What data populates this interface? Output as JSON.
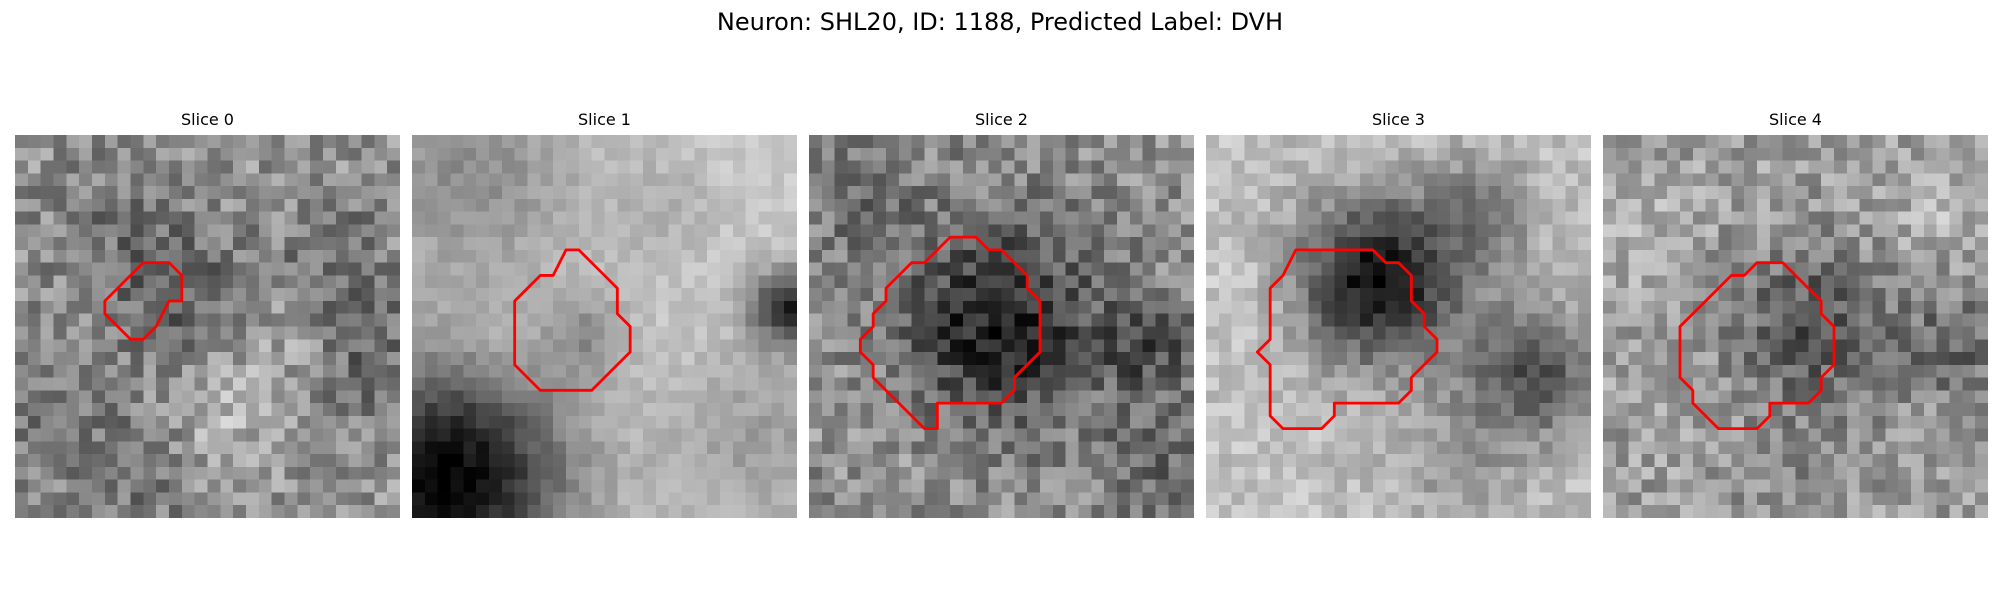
{
  "figure": {
    "title": "Neuron: SHL20, ID: 1188, Predicted Label: DVH",
    "outline_color": "#ff0000",
    "colormap": "grayscale",
    "panels": [
      {
        "title": "Slice 0",
        "seed": 11,
        "base": 0.58,
        "noise": 0.34,
        "blobs": [
          [
            0.28,
            0.25,
            0.14,
            -0.12
          ],
          [
            0.45,
            0.42,
            0.12,
            -0.18
          ],
          [
            0.82,
            0.3,
            0.1,
            -0.15
          ],
          [
            0.92,
            0.58,
            0.12,
            -0.18
          ],
          [
            0.1,
            0.7,
            0.14,
            -0.12
          ],
          [
            0.3,
            0.9,
            0.12,
            -0.12
          ],
          [
            0.55,
            0.75,
            0.1,
            0.12
          ],
          [
            0.7,
            0.55,
            0.1,
            0.08
          ]
        ],
        "outline": [
          [
            11,
            10
          ],
          [
            12,
            10
          ],
          [
            13,
            11
          ],
          [
            13,
            13
          ],
          [
            12,
            13
          ],
          [
            11,
            15
          ],
          [
            10,
            16
          ],
          [
            9,
            16
          ],
          [
            8,
            15
          ],
          [
            7,
            14
          ],
          [
            7,
            13
          ],
          [
            8,
            12
          ],
          [
            9,
            11
          ],
          [
            9,
            11
          ],
          [
            10,
            10
          ]
        ]
      },
      {
        "title": "Slice 1",
        "seed": 23,
        "base": 0.8,
        "noise": 0.12,
        "blobs": [
          [
            0.1,
            0.9,
            0.22,
            -0.78
          ],
          [
            0.15,
            0.1,
            0.2,
            -0.25
          ],
          [
            0.45,
            0.52,
            0.08,
            -0.2
          ],
          [
            0.98,
            0.45,
            0.07,
            -0.65
          ],
          [
            0.9,
            0.8,
            0.18,
            -0.18
          ],
          [
            0.65,
            0.18,
            0.12,
            -0.1
          ],
          [
            0.25,
            0.55,
            0.07,
            0.08
          ]
        ],
        "outline": [
          [
            12,
            9
          ],
          [
            13,
            9
          ],
          [
            15,
            11
          ],
          [
            16,
            12
          ],
          [
            16,
            14
          ],
          [
            17,
            15
          ],
          [
            17,
            17
          ],
          [
            16,
            18
          ],
          [
            14,
            20
          ],
          [
            10,
            20
          ],
          [
            9,
            19
          ],
          [
            8,
            18
          ],
          [
            8,
            13
          ],
          [
            9,
            12
          ],
          [
            10,
            11
          ],
          [
            11,
            11
          ]
        ]
      },
      {
        "title": "Slice 2",
        "seed": 37,
        "base": 0.55,
        "noise": 0.34,
        "blobs": [
          [
            0.5,
            0.5,
            0.17,
            -0.45
          ],
          [
            0.88,
            0.55,
            0.08,
            -0.25
          ],
          [
            0.92,
            0.85,
            0.12,
            -0.15
          ],
          [
            0.15,
            0.2,
            0.12,
            -0.1
          ],
          [
            0.2,
            0.8,
            0.12,
            0.05
          ]
        ],
        "outline": [
          [
            11,
            8
          ],
          [
            13,
            8
          ],
          [
            14,
            9
          ],
          [
            15,
            9
          ],
          [
            17,
            11
          ],
          [
            17,
            12
          ],
          [
            18,
            13
          ],
          [
            18,
            17
          ],
          [
            17,
            18
          ],
          [
            16,
            19
          ],
          [
            16,
            20
          ],
          [
            15,
            21
          ],
          [
            10,
            21
          ],
          [
            10,
            23
          ],
          [
            9,
            23
          ],
          [
            8,
            22
          ],
          [
            6,
            20
          ],
          [
            5,
            19
          ],
          [
            5,
            18
          ],
          [
            4,
            17
          ],
          [
            4,
            16
          ],
          [
            5,
            15
          ],
          [
            5,
            14
          ],
          [
            6,
            13
          ],
          [
            6,
            12
          ],
          [
            7,
            11
          ],
          [
            8,
            10
          ],
          [
            9,
            10
          ],
          [
            10,
            9
          ]
        ]
      },
      {
        "title": "Slice 3",
        "seed": 41,
        "base": 0.75,
        "noise": 0.2,
        "blobs": [
          [
            0.45,
            0.38,
            0.15,
            -0.7
          ],
          [
            0.85,
            0.62,
            0.12,
            -0.45
          ],
          [
            0.72,
            0.2,
            0.1,
            -0.25
          ],
          [
            0.1,
            0.45,
            0.12,
            0.05
          ],
          [
            0.65,
            0.85,
            0.12,
            -0.15
          ]
        ],
        "outline": [
          [
            7,
            9
          ],
          [
            13,
            9
          ],
          [
            14,
            10
          ],
          [
            15,
            10
          ],
          [
            16,
            11
          ],
          [
            16,
            13
          ],
          [
            17,
            14
          ],
          [
            17,
            15
          ],
          [
            18,
            16
          ],
          [
            18,
            17
          ],
          [
            17,
            18
          ],
          [
            16,
            19
          ],
          [
            16,
            20
          ],
          [
            15,
            21
          ],
          [
            10,
            21
          ],
          [
            10,
            22
          ],
          [
            9,
            23
          ],
          [
            6,
            23
          ],
          [
            5,
            22
          ],
          [
            5,
            21
          ],
          [
            5,
            18
          ],
          [
            4,
            17
          ],
          [
            5,
            16
          ],
          [
            5,
            12
          ],
          [
            6,
            11
          ]
        ]
      },
      {
        "title": "Slice 4",
        "seed": 53,
        "base": 0.62,
        "noise": 0.32,
        "blobs": [
          [
            0.55,
            0.5,
            0.15,
            -0.3
          ],
          [
            0.92,
            0.55,
            0.1,
            -0.22
          ],
          [
            0.1,
            0.25,
            0.1,
            0.1
          ],
          [
            0.5,
            0.9,
            0.12,
            -0.08
          ],
          [
            0.85,
            0.2,
            0.1,
            0.08
          ]
        ],
        "outline": [
          [
            12,
            10
          ],
          [
            14,
            10
          ],
          [
            16,
            12
          ],
          [
            17,
            13
          ],
          [
            17,
            14
          ],
          [
            18,
            15
          ],
          [
            18,
            18
          ],
          [
            17,
            19
          ],
          [
            17,
            20
          ],
          [
            16,
            21
          ],
          [
            13,
            21
          ],
          [
            13,
            22
          ],
          [
            12,
            23
          ],
          [
            9,
            23
          ],
          [
            8,
            22
          ],
          [
            7,
            21
          ],
          [
            7,
            20
          ],
          [
            6,
            19
          ],
          [
            6,
            18
          ],
          [
            6,
            15
          ],
          [
            7,
            14
          ],
          [
            8,
            13
          ],
          [
            9,
            12
          ],
          [
            10,
            11
          ],
          [
            11,
            11
          ]
        ]
      }
    ]
  }
}
